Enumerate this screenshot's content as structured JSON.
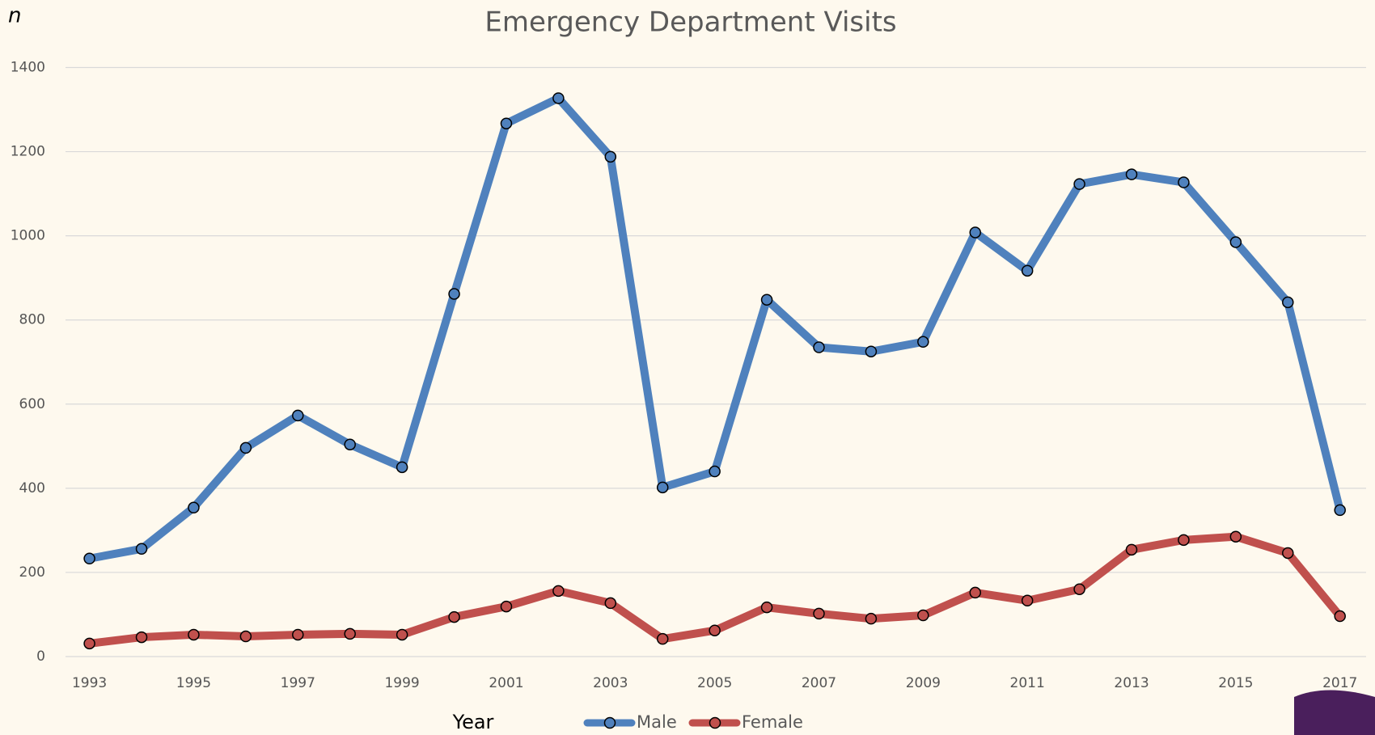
{
  "chart_data": {
    "type": "line",
    "title": "Emergency Department Visits",
    "y_label": "n",
    "x_label": "Year",
    "categories": [
      "1993",
      null,
      "1995",
      null,
      "1997",
      null,
      "1999",
      null,
      "2001",
      null,
      "2003",
      null,
      "2005",
      null,
      "2007",
      null,
      "2009",
      null,
      "2011",
      null,
      "2013",
      null,
      "2015",
      null,
      "2017"
    ],
    "series": [
      {
        "name": "Male",
        "color": "#4f81bd",
        "values": [
          233,
          256,
          354,
          496,
          573,
          504,
          450,
          862,
          1267,
          1327,
          1188,
          402,
          440,
          848,
          735,
          725,
          748,
          1008,
          917,
          1123,
          1146,
          1127,
          985,
          842,
          348
        ]
      },
      {
        "name": "Female",
        "color": "#c0504d",
        "values": [
          31,
          46,
          52,
          48,
          52,
          54,
          52,
          94,
          119,
          156,
          127,
          42,
          62,
          117,
          102,
          90,
          98,
          152,
          133,
          160,
          254,
          277,
          285,
          246,
          96
        ]
      }
    ],
    "ylim": [
      0,
      1400
    ],
    "yticks": [
      0,
      200,
      400,
      600,
      800,
      1000,
      1200,
      1400
    ],
    "grid": true,
    "legend": "bottom"
  }
}
